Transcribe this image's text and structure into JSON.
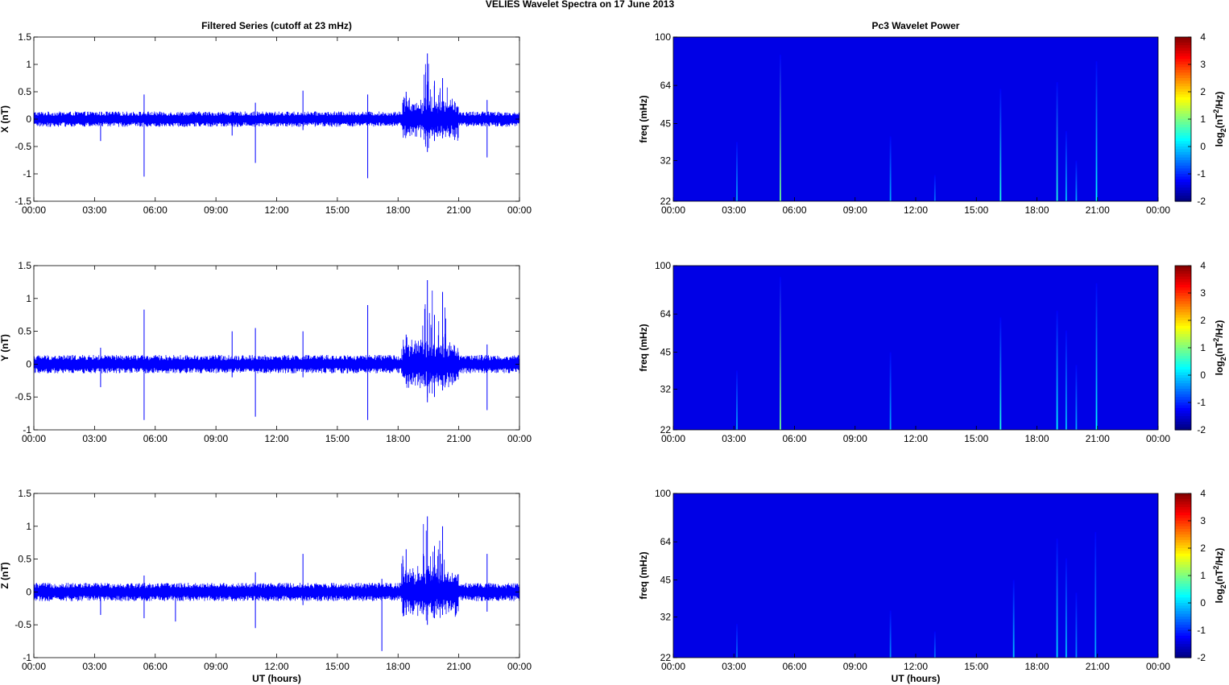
{
  "figure_title": "VELIES Wavelet Spectra on 17 June      2013",
  "chart_data": [
    {
      "type": "line",
      "title": "Filtered Series (cutoff at 23 mHz)",
      "xlabel": "",
      "ylabel": "X (nT)",
      "x_ticks": [
        "00:00",
        "03:00",
        "06:00",
        "09:00",
        "12:00",
        "15:00",
        "18:00",
        "21:00",
        "00:00"
      ],
      "xlim_hours": [
        0,
        24
      ],
      "ylim": [
        -1.5,
        1.5
      ],
      "y_ticks": [
        "-1.5",
        "-1",
        "-0.5",
        "0",
        "0.5",
        "1",
        "1.5"
      ],
      "y_tick_values": [
        -1.5,
        -1,
        -0.5,
        0,
        0.5,
        1,
        1.5
      ],
      "series_color": "#0000ff",
      "noise_amplitude": 0.1,
      "spikes": [
        {
          "t": 3.3,
          "max": 0.0,
          "min": -0.4
        },
        {
          "t": 5.45,
          "max": 0.45,
          "min": -1.05
        },
        {
          "t": 9.8,
          "max": 0.0,
          "min": -0.3
        },
        {
          "t": 10.95,
          "max": 0.3,
          "min": -0.8
        },
        {
          "t": 13.3,
          "max": 0.52,
          "min": -0.2
        },
        {
          "t": 16.5,
          "max": 0.45,
          "min": -1.08
        },
        {
          "t": 18.4,
          "max": 0.5,
          "min": -0.3
        },
        {
          "t": 19.45,
          "max": 1.2,
          "min": -0.6
        },
        {
          "t": 19.8,
          "max": 0.7,
          "min": -0.4
        },
        {
          "t": 20.2,
          "max": 0.75,
          "min": -0.35
        },
        {
          "t": 22.4,
          "max": 0.35,
          "min": -0.7
        }
      ]
    },
    {
      "type": "line",
      "title": "",
      "xlabel": "",
      "ylabel": "Y (nT)",
      "x_ticks": [
        "00:00",
        "03:00",
        "06:00",
        "09:00",
        "12:00",
        "15:00",
        "18:00",
        "21:00",
        "00:00"
      ],
      "xlim_hours": [
        0,
        24
      ],
      "ylim": [
        -1,
        1.5
      ],
      "y_ticks": [
        "-1",
        "-0.5",
        "0",
        "0.5",
        "1",
        "1.5"
      ],
      "y_tick_values": [
        -1,
        -0.5,
        0,
        0.5,
        1,
        1.5
      ],
      "series_color": "#0000ff",
      "noise_amplitude": 0.1,
      "spikes": [
        {
          "t": 3.3,
          "max": 0.25,
          "min": -0.35
        },
        {
          "t": 5.45,
          "max": 0.83,
          "min": -0.85
        },
        {
          "t": 9.8,
          "max": 0.5,
          "min": -0.2
        },
        {
          "t": 10.95,
          "max": 0.55,
          "min": -0.8
        },
        {
          "t": 13.3,
          "max": 0.5,
          "min": -0.2
        },
        {
          "t": 16.5,
          "max": 0.9,
          "min": -0.85
        },
        {
          "t": 18.4,
          "max": 0.45,
          "min": -0.3
        },
        {
          "t": 19.45,
          "max": 1.28,
          "min": -0.58
        },
        {
          "t": 19.8,
          "max": 0.75,
          "min": -0.5
        },
        {
          "t": 20.2,
          "max": 1.1,
          "min": -0.4
        },
        {
          "t": 22.4,
          "max": 0.3,
          "min": -0.7
        }
      ]
    },
    {
      "type": "line",
      "title": "",
      "xlabel": "UT (hours)",
      "ylabel": "Z (nT)",
      "x_ticks": [
        "00:00",
        "03:00",
        "06:00",
        "09:00",
        "12:00",
        "15:00",
        "18:00",
        "21:00",
        "00:00"
      ],
      "xlim_hours": [
        0,
        24
      ],
      "ylim": [
        -1,
        1.5
      ],
      "y_ticks": [
        "-1",
        "-0.5",
        "0",
        "0.5",
        "1",
        "1.5"
      ],
      "y_tick_values": [
        -1,
        -0.5,
        0,
        0.5,
        1,
        1.5
      ],
      "series_color": "#0000ff",
      "noise_amplitude": 0.1,
      "spikes": [
        {
          "t": 3.3,
          "max": 0.0,
          "min": -0.35
        },
        {
          "t": 5.45,
          "max": 0.25,
          "min": -0.4
        },
        {
          "t": 7.0,
          "max": 0.0,
          "min": -0.45
        },
        {
          "t": 10.95,
          "max": 0.3,
          "min": -0.55
        },
        {
          "t": 13.3,
          "max": 0.58,
          "min": -0.2
        },
        {
          "t": 17.2,
          "max": 0.2,
          "min": -0.9
        },
        {
          "t": 18.4,
          "max": 0.65,
          "min": -0.35
        },
        {
          "t": 19.45,
          "max": 1.15,
          "min": -0.5
        },
        {
          "t": 19.8,
          "max": 0.7,
          "min": -0.4
        },
        {
          "t": 20.2,
          "max": 1.0,
          "min": -0.35
        },
        {
          "t": 22.4,
          "max": 0.58,
          "min": -0.3
        }
      ]
    },
    {
      "type": "heatmap",
      "title": "Pc3 Wavelet Power",
      "xlabel": "",
      "ylabel": "freq (mHz)",
      "x_ticks": [
        "00:00",
        "03:00",
        "06:00",
        "09:00",
        "12:00",
        "15:00",
        "18:00",
        "21:00",
        "00:00"
      ],
      "xlim_hours": [
        0,
        24
      ],
      "y_scale": "log",
      "ylim_mHz": [
        22,
        100
      ],
      "y_ticks": [
        "22",
        "32",
        "45",
        "64",
        "100"
      ],
      "y_tick_values": [
        22,
        32,
        45,
        64,
        100
      ],
      "colorbar_label": "log2(nT^2/Hz)",
      "colorbar_ticks": [
        "-2",
        "-1",
        "0",
        "1",
        "2",
        "3",
        "4"
      ],
      "colorbar_range": [
        -2,
        4
      ],
      "background_value": -2,
      "streaks": [
        {
          "t": 3.15,
          "f_top": 38,
          "strength": 0.35
        },
        {
          "t": 5.3,
          "f_top": 85,
          "strength": 0.7
        },
        {
          "t": 10.75,
          "f_top": 40,
          "strength": 0.35
        },
        {
          "t": 12.95,
          "f_top": 28,
          "strength": 0.25
        },
        {
          "t": 16.2,
          "f_top": 62,
          "strength": 0.55
        },
        {
          "t": 19.0,
          "f_top": 66,
          "strength": 0.55
        },
        {
          "t": 19.45,
          "f_top": 42,
          "strength": 0.4
        },
        {
          "t": 19.95,
          "f_top": 32,
          "strength": 0.35
        },
        {
          "t": 20.95,
          "f_top": 80,
          "strength": 0.5
        }
      ]
    },
    {
      "type": "heatmap",
      "title": "",
      "xlabel": "",
      "ylabel": "freq (mHz)",
      "x_ticks": [
        "00:00",
        "03:00",
        "06:00",
        "09:00",
        "12:00",
        "15:00",
        "18:00",
        "21:00",
        "00:00"
      ],
      "xlim_hours": [
        0,
        24
      ],
      "y_scale": "log",
      "ylim_mHz": [
        22,
        100
      ],
      "y_ticks": [
        "22",
        "32",
        "45",
        "64",
        "100"
      ],
      "y_tick_values": [
        22,
        32,
        45,
        64,
        100
      ],
      "colorbar_label": "log2(nT^2/Hz)",
      "colorbar_ticks": [
        "-2",
        "-1",
        "0",
        "1",
        "2",
        "3",
        "4"
      ],
      "colorbar_range": [
        -2,
        4
      ],
      "background_value": -2,
      "streaks": [
        {
          "t": 3.15,
          "f_top": 38,
          "strength": 0.35
        },
        {
          "t": 5.3,
          "f_top": 90,
          "strength": 0.7
        },
        {
          "t": 10.75,
          "f_top": 45,
          "strength": 0.35
        },
        {
          "t": 16.2,
          "f_top": 62,
          "strength": 0.55
        },
        {
          "t": 19.0,
          "f_top": 66,
          "strength": 0.5
        },
        {
          "t": 19.45,
          "f_top": 55,
          "strength": 0.4
        },
        {
          "t": 19.95,
          "f_top": 40,
          "strength": 0.35
        },
        {
          "t": 20.95,
          "f_top": 85,
          "strength": 0.5
        }
      ]
    },
    {
      "type": "heatmap",
      "title": "",
      "xlabel": "UT (hours)",
      "ylabel": "freq (mHz)",
      "x_ticks": [
        "00:00",
        "03:00",
        "06:00",
        "09:00",
        "12:00",
        "15:00",
        "18:00",
        "21:00",
        "00:00"
      ],
      "xlim_hours": [
        0,
        24
      ],
      "y_scale": "log",
      "ylim_mHz": [
        22,
        100
      ],
      "y_ticks": [
        "22",
        "32",
        "45",
        "64",
        "100"
      ],
      "y_tick_values": [
        22,
        32,
        45,
        64,
        100
      ],
      "colorbar_label": "log2(nT^2/Hz)",
      "colorbar_ticks": [
        "-2",
        "-1",
        "0",
        "1",
        "2",
        "3",
        "4"
      ],
      "colorbar_range": [
        -2,
        4
      ],
      "background_value": -2,
      "streaks": [
        {
          "t": 3.15,
          "f_top": 30,
          "strength": 0.25
        },
        {
          "t": 10.75,
          "f_top": 34,
          "strength": 0.3
        },
        {
          "t": 12.95,
          "f_top": 28,
          "strength": 0.25
        },
        {
          "t": 16.85,
          "f_top": 45,
          "strength": 0.4
        },
        {
          "t": 19.0,
          "f_top": 66,
          "strength": 0.45
        },
        {
          "t": 19.45,
          "f_top": 55,
          "strength": 0.4
        },
        {
          "t": 19.95,
          "f_top": 40,
          "strength": 0.3
        },
        {
          "t": 20.9,
          "f_top": 70,
          "strength": 0.35
        }
      ]
    }
  ]
}
